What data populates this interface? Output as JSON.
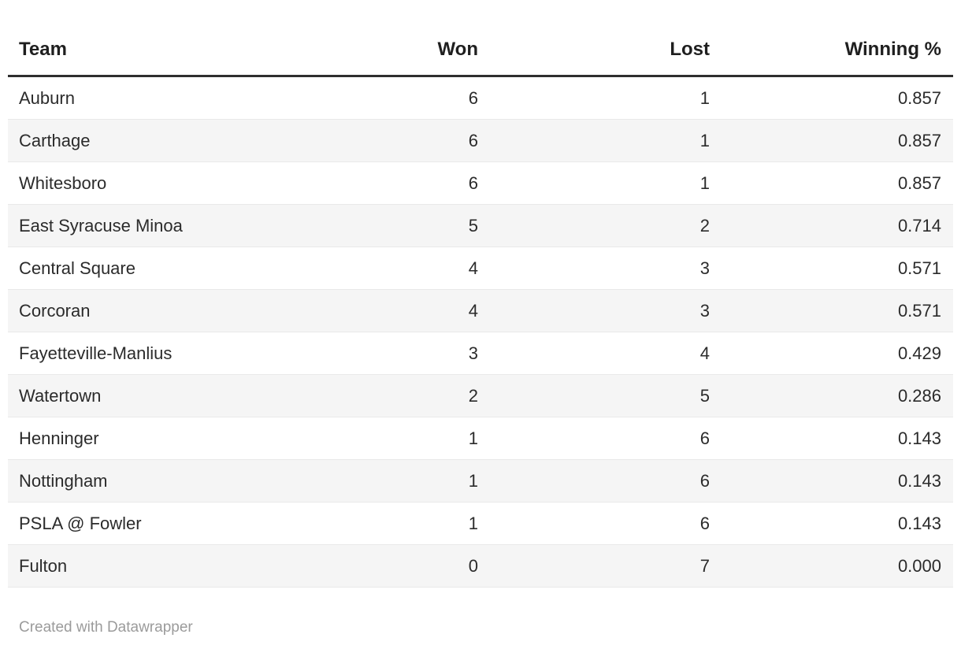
{
  "table": {
    "columns": [
      {
        "label": "Team",
        "align": "left"
      },
      {
        "label": "Won",
        "align": "right"
      },
      {
        "label": "Lost",
        "align": "right"
      },
      {
        "label": "Winning %",
        "align": "right"
      }
    ],
    "rows": [
      [
        "Auburn",
        "6",
        "1",
        "0.857"
      ],
      [
        "Carthage",
        "6",
        "1",
        "0.857"
      ],
      [
        "Whitesboro",
        "6",
        "1",
        "0.857"
      ],
      [
        "East Syracuse Minoa",
        "5",
        "2",
        "0.714"
      ],
      [
        "Central Square",
        "4",
        "3",
        "0.571"
      ],
      [
        "Corcoran",
        "4",
        "3",
        "0.571"
      ],
      [
        "Fayetteville-Manlius",
        "3",
        "4",
        "0.429"
      ],
      [
        "Watertown",
        "2",
        "5",
        "0.286"
      ],
      [
        "Henninger",
        "1",
        "6",
        "0.143"
      ],
      [
        "Nottingham",
        "1",
        "6",
        "0.143"
      ],
      [
        "PSLA @ Fowler",
        "1",
        "6",
        "0.143"
      ],
      [
        "Fulton",
        "0",
        "7",
        "0.000"
      ]
    ]
  },
  "footer": {
    "attribution": "Created with Datawrapper"
  },
  "colors": {
    "header_rule": "#2e2e2e",
    "row_stripe": "#f5f5f5",
    "row_border": "#e9e9e9",
    "text": "#2b2b2b",
    "footer_text": "#9b9b9b"
  },
  "chart_data": {
    "type": "table",
    "columns": [
      "Team",
      "Won",
      "Lost",
      "Winning %"
    ],
    "rows": [
      [
        "Auburn",
        6,
        1,
        0.857
      ],
      [
        "Carthage",
        6,
        1,
        0.857
      ],
      [
        "Whitesboro",
        6,
        1,
        0.857
      ],
      [
        "East Syracuse Minoa",
        5,
        2,
        0.714
      ],
      [
        "Central Square",
        4,
        3,
        0.571
      ],
      [
        "Corcoran",
        4,
        3,
        0.571
      ],
      [
        "Fayetteville-Manlius",
        3,
        4,
        0.429
      ],
      [
        "Watertown",
        2,
        5,
        0.286
      ],
      [
        "Henninger",
        1,
        6,
        0.143
      ],
      [
        "Nottingham",
        1,
        6,
        0.143
      ],
      [
        "PSLA @ Fowler",
        1,
        6,
        0.143
      ],
      [
        "Fulton",
        0,
        7,
        0.0
      ]
    ],
    "layout_hints": {
      "zebra_striping": true,
      "numeric_columns_right_aligned": true,
      "attribution": "Created with Datawrapper"
    }
  }
}
